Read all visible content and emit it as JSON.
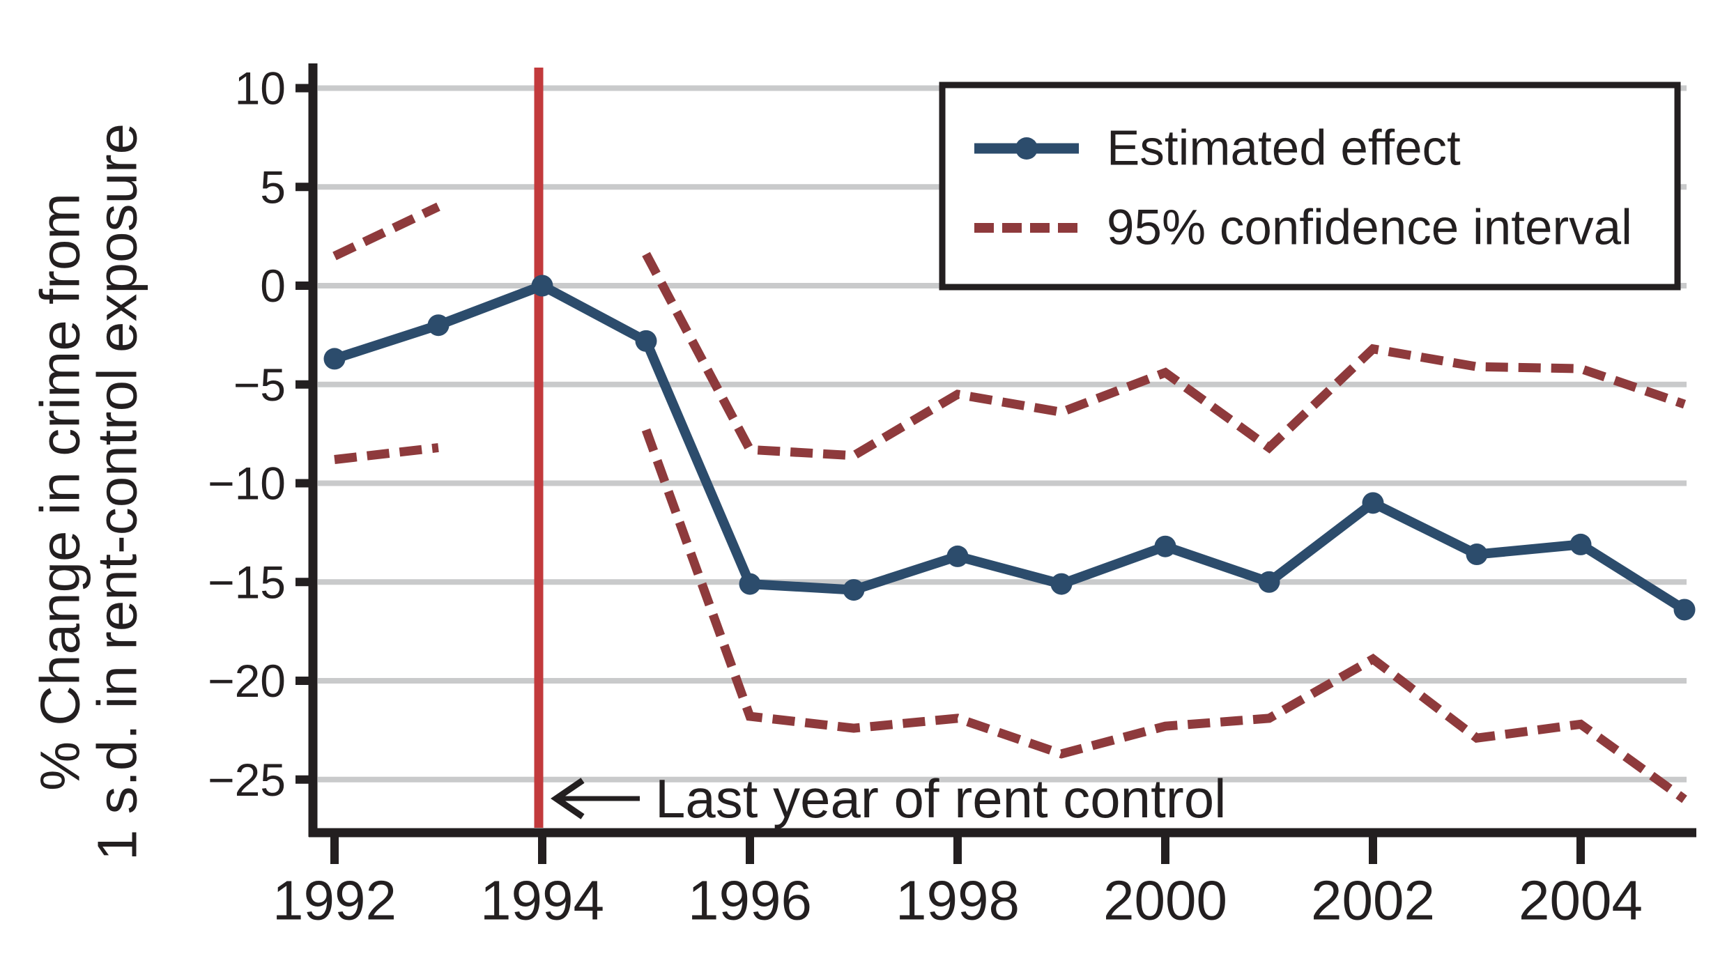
{
  "figure": {
    "background": "#ffffff"
  },
  "colors": {
    "axis": "#231f20",
    "grid": "#c9cacb",
    "estimate": "#2c4c6c",
    "confidence": "#8e3a3c",
    "reference_line": "#c23a3c",
    "legend_background": "#ffffff"
  },
  "chart_data": {
    "type": "line",
    "title": "",
    "x": [
      1992,
      1993,
      1994,
      1995,
      1996,
      1997,
      1998,
      1999,
      2000,
      2001,
      2002,
      2003,
      2004,
      2005
    ],
    "x_axis": {
      "tick_years": [
        1992,
        1994,
        1996,
        1998,
        2000,
        2002,
        2004
      ],
      "tick_labels": [
        "1992",
        "1994",
        "1996",
        "1998",
        "2000",
        "2002",
        "2004"
      ]
    },
    "y_axis": {
      "label_line1": "% Change in crime from",
      "label_line2": "1 s.d. in rent-control exposure",
      "tick_values": [
        10,
        5,
        0,
        -5,
        -10,
        -15,
        -20,
        -25
      ],
      "tick_labels": [
        "10",
        "5",
        "0",
        "−5",
        "−10",
        "−15",
        "−20",
        "−25"
      ],
      "ylim": [
        -27.5,
        11
      ]
    },
    "grid": true,
    "series": [
      {
        "name": "Estimated effect",
        "role": "estimate",
        "style": "solid",
        "marker": "circle",
        "color": "#2c4c6c",
        "values": [
          -3.7,
          -2.0,
          0,
          -2.8,
          -15.1,
          -15.4,
          -13.7,
          -15.1,
          -13.2,
          -15.0,
          -11.0,
          -13.6,
          -13.1,
          -16.4
        ]
      },
      {
        "name": "95% confidence interval (upper)",
        "role": "ci_upper",
        "style": "dashed",
        "color": "#8e3a3c",
        "values": [
          1.5,
          4.0,
          null,
          1.6,
          -8.3,
          -8.6,
          -5.5,
          -6.4,
          -4.4,
          -8.2,
          -3.2,
          -4.1,
          -4.2,
          -6.0
        ]
      },
      {
        "name": "95% confidence interval (lower)",
        "role": "ci_lower",
        "style": "dashed",
        "color": "#8e3a3c",
        "values": [
          -8.8,
          -8.2,
          null,
          -7.3,
          -21.8,
          -22.4,
          -21.9,
          -23.7,
          -22.3,
          -21.9,
          -18.9,
          -22.9,
          -22.2,
          -26.0
        ]
      }
    ],
    "reference_line": {
      "x_year": 1994,
      "color": "#c23a3c"
    },
    "annotation": {
      "text": "Last year of rent control",
      "arrow_direction": "left",
      "points_to_year": 1994
    },
    "legend": {
      "position": "top-right",
      "items": [
        {
          "label": "Estimated effect",
          "color": "#2c4c6c",
          "style": "solid-circle"
        },
        {
          "label": "95% confidence interval",
          "color": "#8e3a3c",
          "style": "dashed"
        }
      ]
    }
  }
}
